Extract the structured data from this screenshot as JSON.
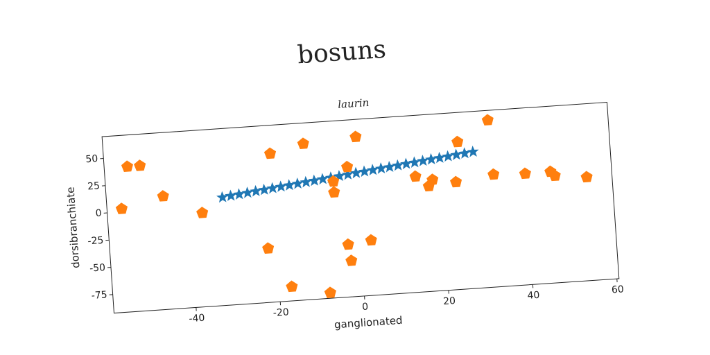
{
  "chart_data": {
    "type": "scatter",
    "title": "bosuns",
    "subtitle": "laurin",
    "xlabel": "ganglionated",
    "ylabel": "dorsibranchiate",
    "xlim": [
      -59.5,
      60.5
    ],
    "ylim": [
      -92,
      70
    ],
    "xticks": [
      -40,
      -20,
      0,
      20,
      40,
      60
    ],
    "yticks": [
      -75,
      -50,
      -25,
      0,
      25,
      50
    ],
    "series": [
      {
        "color": "#1f77b4",
        "marker": "star",
        "x": [
          -32,
          -30,
          -28,
          -26,
          -24,
          -22,
          -20,
          -18,
          -16,
          -14,
          -12,
          -10,
          -8,
          -6,
          -4,
          -2,
          0,
          2,
          4,
          6,
          8,
          10,
          12,
          14,
          16,
          18,
          20,
          22,
          24,
          26,
          28
        ],
        "y": [
          7.0,
          7.9,
          8.7,
          9.6,
          10.5,
          11.3,
          12.2,
          13.1,
          13.9,
          14.8,
          15.7,
          16.5,
          17.4,
          18.3,
          19.1,
          20.0,
          20.9,
          21.7,
          22.6,
          23.5,
          24.3,
          25.2,
          26.1,
          26.9,
          27.8,
          28.7,
          29.5,
          30.4,
          31.3,
          32.1,
          33.0
        ]
      },
      {
        "color": "#ff7f0e",
        "marker": "pentagon",
        "x": [
          -56,
          -54,
          -51,
          -46,
          -37,
          -20,
          -12,
          0.5,
          -2,
          -5.5,
          -5.5,
          -22,
          -17,
          -8,
          -3,
          -2.5,
          2.5,
          14,
          17,
          18,
          24.5,
          23.5,
          32,
          32.5,
          40,
          46,
          47,
          54.5
        ],
        "y": [
          2.8,
          41,
          41,
          11.7,
          -6,
          44,
          51,
          54,
          27,
          14.6,
          4.6,
          -42.5,
          -79,
          -87,
          -44,
          -59,
          -41.5,
          14,
          4.4,
          10,
          43,
          6.4,
          61,
          11,
          9.8,
          10,
          6,
          2.8
        ]
      }
    ]
  }
}
